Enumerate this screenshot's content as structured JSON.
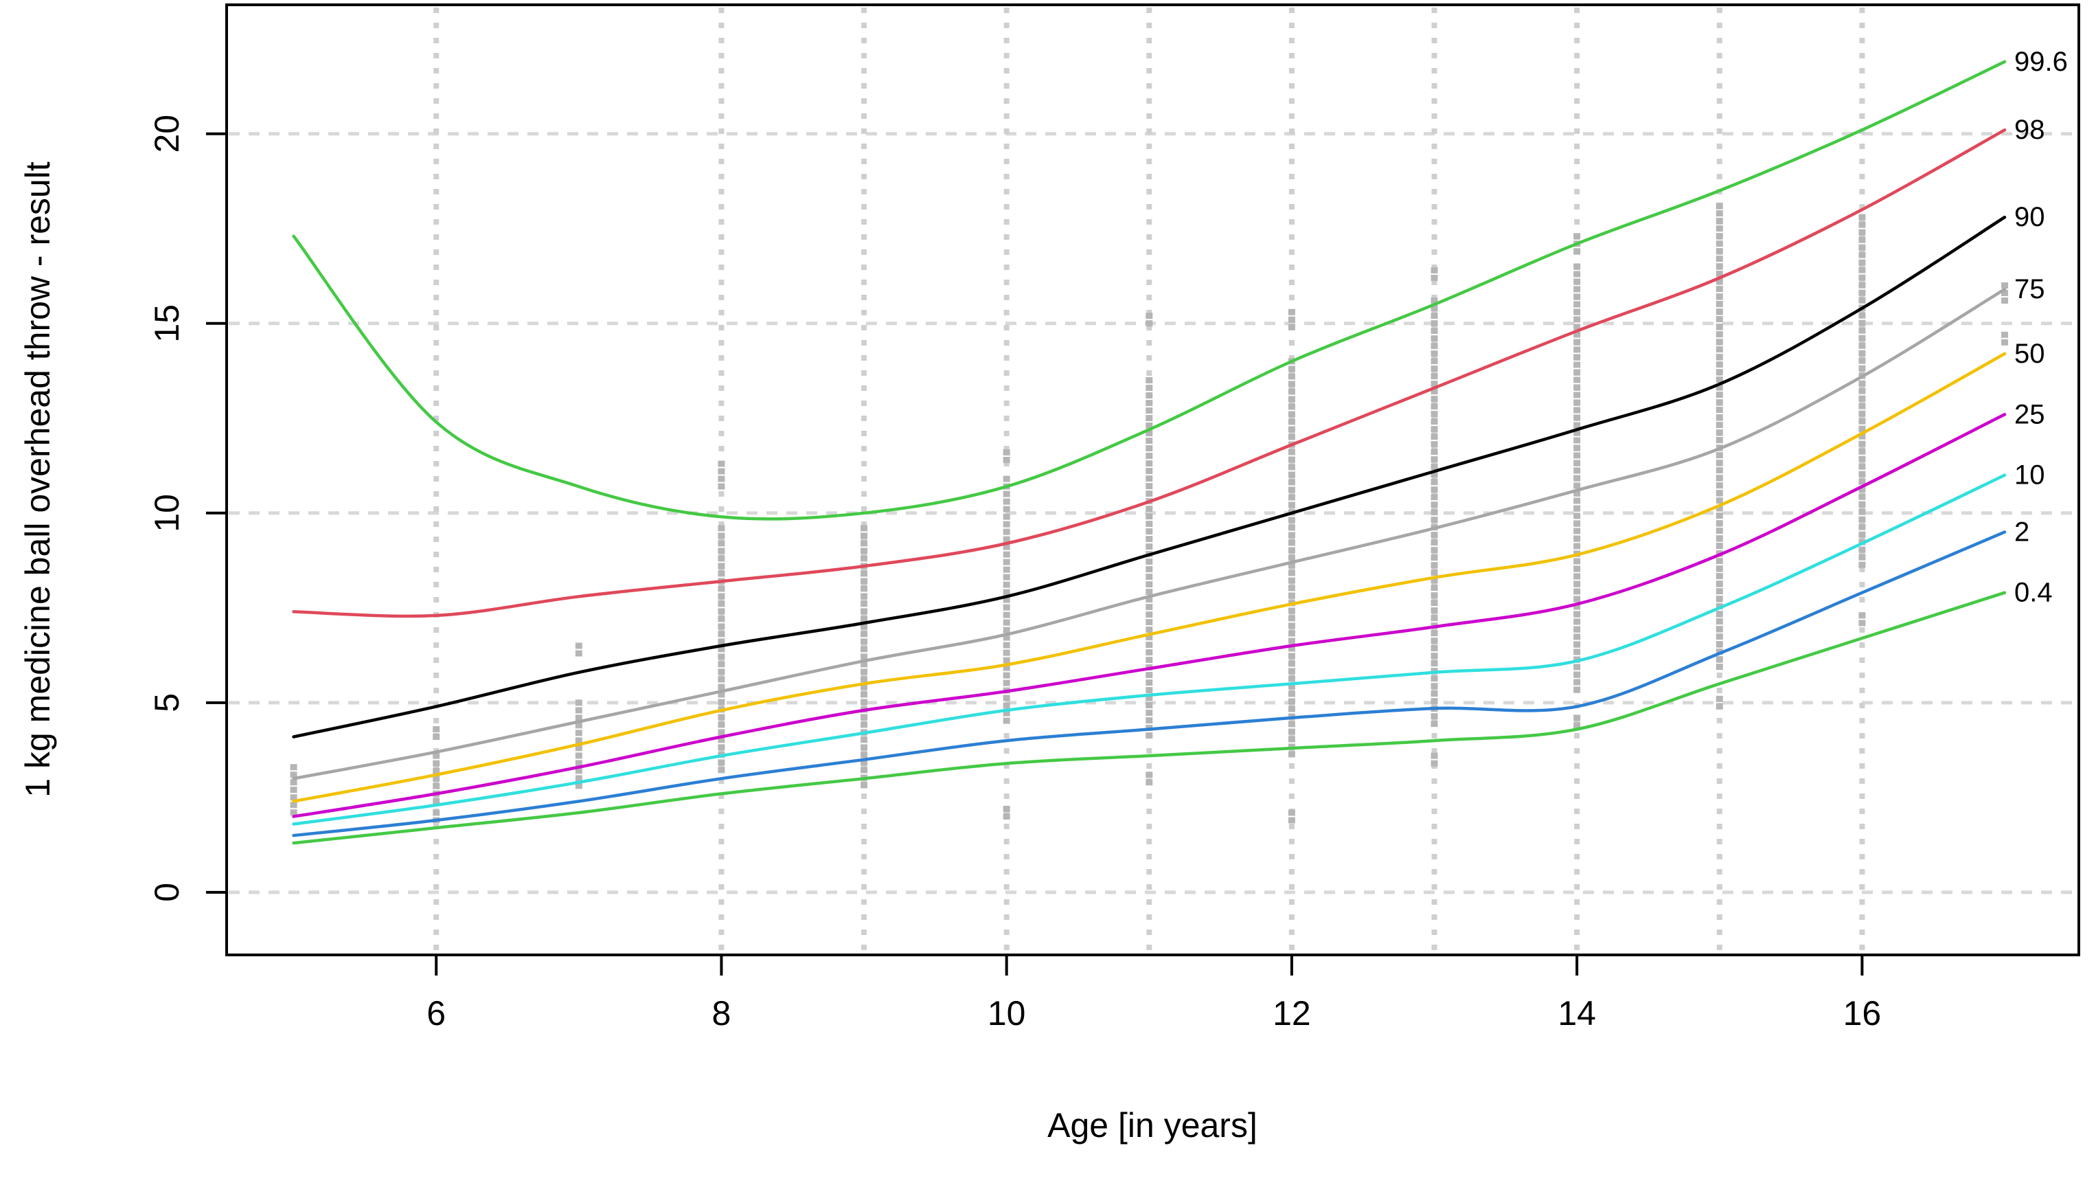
{
  "chart_data": {
    "type": "line",
    "title": "",
    "xlabel": "Age [in years]",
    "ylabel": "1 kg medicine ball overhead throw - result",
    "x_ticks": [
      6,
      8,
      10,
      12,
      14,
      16
    ],
    "y_ticks": [
      0,
      5,
      10,
      15,
      20
    ],
    "xlim": [
      4.53,
      17.52
    ],
    "ylim": [
      -1.65,
      23.4
    ],
    "grid_on": true,
    "grid_vertical_ages": [
      6,
      8,
      9,
      10,
      11,
      12,
      13,
      14,
      15,
      16
    ],
    "legend_position": "right-edge-labels",
    "ages": [
      5,
      6,
      7,
      8,
      9,
      10,
      11,
      12,
      13,
      14,
      15,
      16,
      17
    ],
    "series": [
      {
        "name": "99.6",
        "color": "#44c944",
        "values": [
          17.3,
          12.4,
          10.7,
          9.9,
          10.0,
          10.7,
          12.2,
          14.0,
          15.5,
          17.1,
          18.5,
          20.1,
          21.9
        ]
      },
      {
        "name": "98",
        "color": "#e0485a",
        "values": [
          7.4,
          7.3,
          7.8,
          8.2,
          8.6,
          9.2,
          10.3,
          11.8,
          13.3,
          14.8,
          16.2,
          18.0,
          20.1
        ]
      },
      {
        "name": "90",
        "color": "#000000",
        "values": [
          4.1,
          4.9,
          5.8,
          6.5,
          7.1,
          7.8,
          8.9,
          10.0,
          11.1,
          12.2,
          13.4,
          15.4,
          17.8
        ]
      },
      {
        "name": "75",
        "color": "#a6a6a6",
        "values": [
          3.0,
          3.7,
          4.5,
          5.3,
          6.1,
          6.8,
          7.8,
          8.7,
          9.6,
          10.6,
          11.7,
          13.6,
          15.9
        ]
      },
      {
        "name": "50",
        "color": "#f2c100",
        "values": [
          2.4,
          3.1,
          3.9,
          4.8,
          5.5,
          6.0,
          6.8,
          7.6,
          8.3,
          8.9,
          10.2,
          12.1,
          14.2
        ]
      },
      {
        "name": "25",
        "color": "#cc00cc",
        "values": [
          2.0,
          2.6,
          3.3,
          4.1,
          4.8,
          5.3,
          5.9,
          6.5,
          7.0,
          7.6,
          8.9,
          10.7,
          12.6
        ]
      },
      {
        "name": "10",
        "color": "#30dfdf",
        "values": [
          1.8,
          2.3,
          2.9,
          3.6,
          4.2,
          4.8,
          5.2,
          5.5,
          5.8,
          6.1,
          7.5,
          9.2,
          11.0
        ]
      },
      {
        "name": "2",
        "color": "#2b7fd4",
        "values": [
          1.5,
          1.9,
          2.4,
          3.0,
          3.5,
          4.0,
          4.3,
          4.6,
          4.85,
          4.9,
          6.3,
          7.9,
          9.5
        ]
      },
      {
        "name": "0.4",
        "color": "#44c944",
        "values": [
          1.3,
          1.7,
          2.1,
          2.6,
          3.0,
          3.4,
          3.6,
          3.8,
          4.0,
          4.3,
          5.5,
          6.7,
          7.9
        ]
      }
    ],
    "scatter_points": {
      "color": "#b5b5b5",
      "strips": [
        {
          "age": 5,
          "segments": [
            [
              2.1,
              3.3
            ]
          ]
        },
        {
          "age": 6,
          "segments": [
            [
              1.8,
              2.1
            ],
            [
              2.4,
              3.6
            ],
            [
              4.0,
              4.3
            ]
          ]
        },
        {
          "age": 7,
          "segments": [
            [
              2.7,
              5.0
            ],
            [
              6.2,
              6.5
            ]
          ]
        },
        {
          "age": 8,
          "segments": [
            [
              3.2,
              9.6
            ],
            [
              10.7,
              11.3
            ]
          ]
        },
        {
          "age": 9,
          "segments": [
            [
              2.8,
              9.6
            ]
          ]
        },
        {
          "age": 10,
          "segments": [
            [
              1.9,
              2.2
            ],
            [
              4.4,
              10.9
            ],
            [
              11.3,
              11.6
            ]
          ]
        },
        {
          "age": 11,
          "segments": [
            [
              2.9,
              3.1
            ],
            [
              4.0,
              13.5
            ],
            [
              14.9,
              15.2
            ]
          ]
        },
        {
          "age": 12,
          "segments": [
            [
              1.8,
              2.1
            ],
            [
              3.5,
              14.0
            ],
            [
              14.9,
              15.3
            ]
          ]
        },
        {
          "age": 13,
          "segments": [
            [
              3.3,
              3.6
            ],
            [
              4.4,
              15.6
            ],
            [
              16.1,
              16.4
            ]
          ]
        },
        {
          "age": 14,
          "segments": [
            [
              4.3,
              4.6
            ],
            [
              5.2,
              16.5
            ],
            [
              16.9,
              17.3
            ]
          ]
        },
        {
          "age": 15,
          "segments": [
            [
              4.8,
              5.1
            ],
            [
              5.8,
              18.1
            ]
          ]
        },
        {
          "age": 16,
          "segments": [
            [
              7.0,
              7.3
            ],
            [
              8.6,
              17.8
            ]
          ]
        },
        {
          "age": 17,
          "segments": [
            [
              14.4,
              14.7
            ],
            [
              15.5,
              16.0
            ]
          ]
        }
      ]
    },
    "colors": {
      "plot_border": "#000000",
      "gridline": "#d8d8d8",
      "vertical_dotted": "#cfcfcf",
      "percentile_label_text": "#2a2ae0",
      "axis_text": "#000000",
      "background": "#ffffff"
    }
  }
}
